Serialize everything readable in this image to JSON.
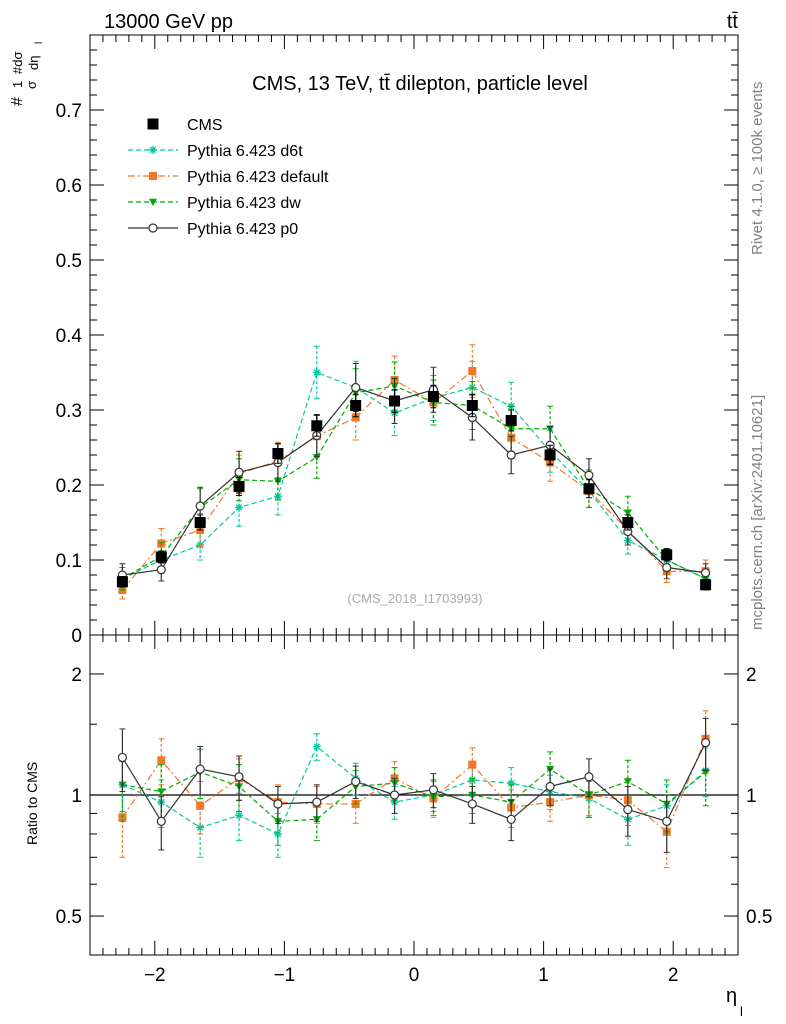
{
  "header": {
    "left_label": "13000 GeV pp",
    "right_label": "tt̄"
  },
  "side_labels": {
    "rivet": "Rivet 4.1.0, ≥ 100k events",
    "mcplots": "mcplots.cern.ch [arXiv:2401.10621]"
  },
  "chart_data": [
    {
      "type": "line",
      "title": "CMS, 13 TeV, tt̄ dilepton, particle level",
      "watermark": "(CMS_2018_I1703993)",
      "ylabel_main": "#",
      "ylabel_frac_num": "1",
      "ylabel_frac_den": "σ",
      "ylabel_deriv_num": "#dσ",
      "ylabel_deriv_den": "dη",
      "ylabel_sub": "l",
      "ylim": [
        0,
        0.8
      ],
      "yticks": [
        0,
        0.1,
        0.2,
        0.3,
        0.4,
        0.5,
        0.6,
        0.7
      ],
      "ytick_labels": [
        "0",
        "0.1",
        "0.2",
        "0.3",
        "0.4",
        "0.5",
        "0.6",
        "0.7"
      ],
      "xlim": [
        -2.5,
        2.5
      ],
      "x": [
        -2.25,
        -1.95,
        -1.65,
        -1.35,
        -1.05,
        -0.75,
        -0.45,
        -0.15,
        0.15,
        0.45,
        0.75,
        1.05,
        1.35,
        1.65,
        1.95,
        2.25
      ],
      "legend": [
        "CMS",
        "Pythia 6.423 d6t",
        "Pythia 6.423 default",
        "Pythia 6.423 dw",
        "Pythia 6.423 p0"
      ],
      "series": [
        {
          "name": "CMS",
          "color": "#000000",
          "marker": "square",
          "line": "none",
          "values": [
            0.071,
            0.104,
            0.15,
            0.198,
            0.242,
            0.279,
            0.306,
            0.312,
            0.318,
            0.306,
            0.286,
            0.24,
            0.195,
            0.15,
            0.107,
            0.067
          ],
          "errors": [
            0.007,
            0.008,
            0.01,
            0.012,
            0.013,
            0.014,
            0.015,
            0.015,
            0.015,
            0.015,
            0.014,
            0.013,
            0.012,
            0.01,
            0.008,
            0.007
          ]
        },
        {
          "name": "Pythia 6.423 d6t",
          "color": "#00c8a0",
          "marker": "star",
          "line": "dashed",
          "values": [
            0.075,
            0.1,
            0.12,
            0.17,
            0.185,
            0.35,
            0.33,
            0.296,
            0.316,
            0.33,
            0.305,
            0.245,
            0.192,
            0.126,
            0.1,
            0.075
          ],
          "errors": [
            0.015,
            0.018,
            0.02,
            0.025,
            0.025,
            0.035,
            0.035,
            0.03,
            0.03,
            0.035,
            0.032,
            0.028,
            0.022,
            0.018,
            0.015,
            0.012
          ]
        },
        {
          "name": "Pythia 6.423 default",
          "color": "#f07828",
          "marker": "square",
          "line": "dashdot",
          "values": [
            0.06,
            0.122,
            0.14,
            0.215,
            0.232,
            0.265,
            0.29,
            0.34,
            0.31,
            0.352,
            0.263,
            0.23,
            0.192,
            0.14,
            0.085,
            0.085
          ],
          "errors": [
            0.012,
            0.02,
            0.022,
            0.025,
            0.025,
            0.028,
            0.03,
            0.032,
            0.03,
            0.035,
            0.028,
            0.025,
            0.022,
            0.02,
            0.015,
            0.015
          ]
        },
        {
          "name": "Pythia 6.423 dw",
          "color": "#00aa00",
          "marker": "triangle-down",
          "line": "dashed",
          "values": [
            0.075,
            0.105,
            0.17,
            0.207,
            0.205,
            0.237,
            0.323,
            0.332,
            0.31,
            0.306,
            0.275,
            0.275,
            0.195,
            0.163,
            0.1,
            0.075
          ],
          "errors": [
            0.015,
            0.018,
            0.025,
            0.028,
            0.025,
            0.028,
            0.032,
            0.032,
            0.03,
            0.032,
            0.03,
            0.03,
            0.025,
            0.022,
            0.015,
            0.012
          ]
        },
        {
          "name": "Pythia 6.423 p0",
          "color": "#333333",
          "marker": "circle",
          "line": "solid",
          "values": [
            0.08,
            0.087,
            0.172,
            0.217,
            0.23,
            0.266,
            0.33,
            0.312,
            0.327,
            0.29,
            0.24,
            0.253,
            0.213,
            0.138,
            0.09,
            0.083
          ],
          "errors": [
            0.015,
            0.015,
            0.025,
            0.028,
            0.025,
            0.028,
            0.032,
            0.03,
            0.03,
            0.03,
            0.025,
            0.025,
            0.022,
            0.018,
            0.015,
            0.012
          ]
        }
      ]
    },
    {
      "type": "line",
      "title": "",
      "ylabel": "Ratio to CMS",
      "xlabel": "η",
      "xlabel_sub": "l",
      "yscale": "log",
      "ylim": [
        0.4,
        2.5
      ],
      "yticks": [
        0.5,
        1,
        2
      ],
      "ytick_labels": [
        "0.5",
        "1",
        "2"
      ],
      "xlim": [
        -2.5,
        2.5
      ],
      "xticks": [
        -2,
        -1,
        0,
        1,
        2
      ],
      "xtick_labels": [
        "−2",
        "−1",
        "0",
        "1",
        "2"
      ],
      "x": [
        -2.25,
        -1.95,
        -1.65,
        -1.35,
        -1.05,
        -0.75,
        -0.45,
        -0.15,
        0.15,
        0.45,
        0.75,
        1.05,
        1.35,
        1.65,
        1.95,
        2.25
      ],
      "reference_line": 1,
      "series": [
        {
          "name": "Pythia 6.423 d6t",
          "color": "#00c8a0",
          "marker": "star",
          "line": "dashed",
          "values": [
            1.06,
            0.96,
            0.83,
            0.89,
            0.8,
            1.32,
            1.1,
            0.96,
            1.0,
            1.09,
            1.07,
            1.02,
            0.98,
            0.87,
            0.94,
            1.15
          ],
          "errors": [
            0.15,
            0.13,
            0.13,
            0.12,
            0.1,
            0.1,
            0.1,
            0.09,
            0.09,
            0.1,
            0.1,
            0.1,
            0.1,
            0.12,
            0.12,
            0.16
          ]
        },
        {
          "name": "Pythia 6.423 default",
          "color": "#f07828",
          "marker": "square",
          "line": "dashdot",
          "values": [
            0.88,
            1.22,
            0.94,
            1.1,
            0.96,
            0.95,
            0.95,
            1.1,
            0.98,
            1.19,
            0.93,
            0.96,
            1.0,
            0.97,
            0.81,
            1.38
          ],
          "errors": [
            0.18,
            0.16,
            0.14,
            0.13,
            0.1,
            0.1,
            0.1,
            0.11,
            0.1,
            0.12,
            0.1,
            0.1,
            0.11,
            0.13,
            0.15,
            0.24
          ]
        },
        {
          "name": "Pythia 6.423 dw",
          "color": "#00aa00",
          "marker": "triangle-down",
          "line": "dashed",
          "values": [
            1.06,
            1.02,
            1.14,
            1.05,
            0.86,
            0.87,
            1.05,
            1.07,
            0.99,
            1.0,
            0.96,
            1.16,
            1.0,
            1.08,
            0.95,
            1.14
          ],
          "errors": [
            0.2,
            0.17,
            0.16,
            0.14,
            0.11,
            0.1,
            0.1,
            0.1,
            0.1,
            0.1,
            0.1,
            0.12,
            0.12,
            0.14,
            0.14,
            0.2
          ]
        },
        {
          "name": "Pythia 6.423 p0",
          "color": "#333333",
          "marker": "circle",
          "line": "solid",
          "values": [
            1.24,
            0.86,
            1.16,
            1.11,
            0.95,
            0.96,
            1.08,
            1.0,
            1.03,
            0.95,
            0.87,
            1.05,
            1.11,
            0.92,
            0.86,
            1.35
          ],
          "errors": [
            0.22,
            0.13,
            0.16,
            0.14,
            0.1,
            0.1,
            0.1,
            0.1,
            0.1,
            0.1,
            0.1,
            0.11,
            0.12,
            0.13,
            0.14,
            0.2
          ]
        }
      ]
    }
  ]
}
